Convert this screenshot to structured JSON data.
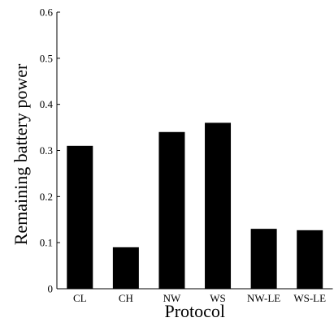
{
  "chart_data": {
    "type": "bar",
    "title": "",
    "xlabel": "Protocol",
    "ylabel": "Remaining battery power",
    "categories": [
      "CL",
      "CH",
      "NW",
      "WS",
      "NW-LE",
      "WS-LE"
    ],
    "values": [
      0.31,
      0.09,
      0.34,
      0.36,
      0.13,
      0.127
    ],
    "ylim": [
      0,
      0.6
    ],
    "yticks": [
      "0",
      "0.1",
      "0.2",
      "0.3",
      "0.4",
      "0.5",
      "0.6"
    ],
    "grid": false,
    "legend": "none",
    "colors": {
      "bar": "#000000",
      "axis": "#000000",
      "background": "#ffffff"
    }
  }
}
